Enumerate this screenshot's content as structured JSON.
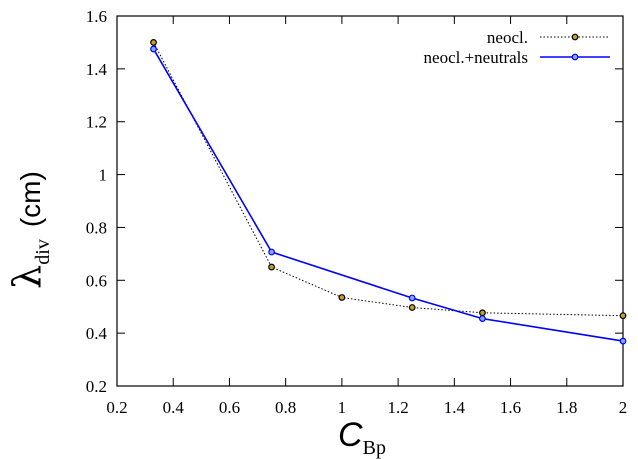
{
  "chart_data": {
    "type": "line",
    "xlabel": {
      "main": "C",
      "sub": "Bp"
    },
    "ylabel": {
      "main": "λ",
      "sub": "div",
      "unit": "(cm)"
    },
    "xlim": [
      0.2,
      2
    ],
    "ylim": [
      0.2,
      1.6
    ],
    "xticks": [
      "0.2",
      "0.4",
      "0.6",
      "0.8",
      "1",
      "1.2",
      "1.4",
      "1.6",
      "1.8",
      "2"
    ],
    "yticks": [
      "0.2",
      "0.4",
      "0.6",
      "0.8",
      "1",
      "1.2",
      "1.4",
      "1.6"
    ],
    "xtick_values": [
      0.2,
      0.4,
      0.6,
      0.8,
      1.0,
      1.2,
      1.4,
      1.6,
      1.8,
      2.0
    ],
    "ytick_values": [
      0.2,
      0.4,
      0.6,
      0.8,
      1.0,
      1.2,
      1.4,
      1.6
    ],
    "grid": false,
    "legend_position": "top-right",
    "series": [
      {
        "name": "neocl.",
        "color": "#000000",
        "line_style": "dotted",
        "marker": "circle",
        "x": [
          0.33,
          0.75,
          1.0,
          1.25,
          1.5,
          2.0
        ],
        "y": [
          1.5,
          0.65,
          0.535,
          0.497,
          0.477,
          0.466
        ]
      },
      {
        "name": "neocl.+neutrals",
        "color": "#0000ff",
        "line_style": "solid",
        "marker": "circle",
        "x": [
          0.33,
          0.75,
          1.25,
          1.5,
          2.0
        ],
        "y": [
          1.475,
          0.707,
          0.533,
          0.455,
          0.37
        ]
      }
    ]
  }
}
